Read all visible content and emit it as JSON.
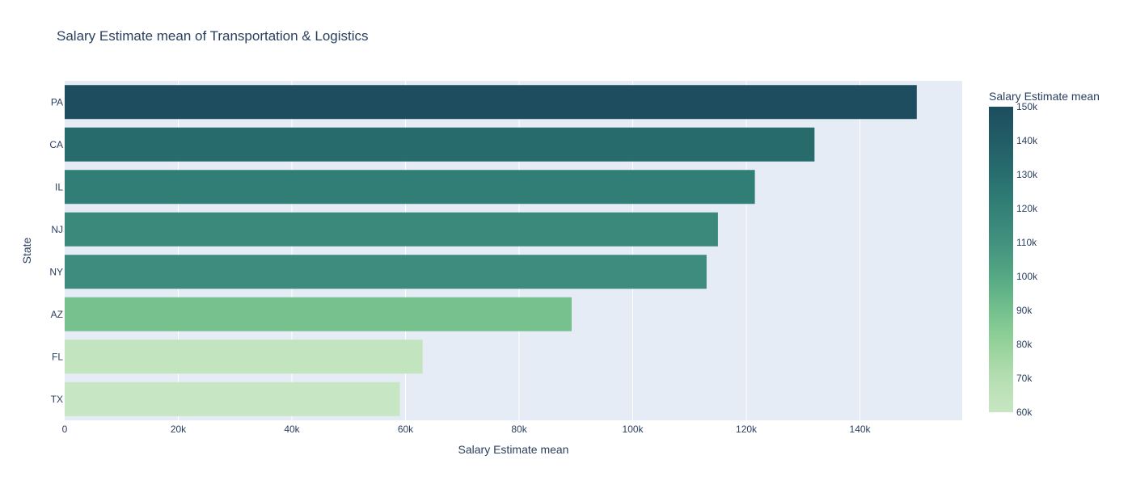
{
  "chart_data": {
    "type": "bar",
    "orientation": "horizontal",
    "title": "Salary Estimate mean of Transportation & Logistics",
    "xlabel": "Salary Estimate mean",
    "ylabel": "State",
    "categories": [
      "PA",
      "CA",
      "IL",
      "NJ",
      "NY",
      "AZ",
      "FL",
      "TX"
    ],
    "values": [
      150000,
      132000,
      121500,
      115000,
      113000,
      89250,
      63000,
      59000
    ],
    "xlim": [
      0,
      158000
    ],
    "x_ticks": [
      0,
      20000,
      40000,
      60000,
      80000,
      100000,
      120000,
      140000
    ],
    "x_tick_labels": [
      "0",
      "20k",
      "40k",
      "60k",
      "80k",
      "100k",
      "120k",
      "140k"
    ],
    "grid": true,
    "colorbar": {
      "title": "Salary Estimate mean",
      "min": 60000,
      "max": 150000,
      "ticks": [
        60000,
        70000,
        80000,
        90000,
        100000,
        110000,
        120000,
        130000,
        140000,
        150000
      ],
      "tick_labels": [
        "60k",
        "70k",
        "80k",
        "90k",
        "100k",
        "110k",
        "120k",
        "130k",
        "140k",
        "150k"
      ],
      "colorscale": [
        "#c7e6c3",
        "#b5deb2",
        "#96d29a",
        "#74c08e",
        "#55a884",
        "#42917f",
        "#338177",
        "#286e6f",
        "#225d65",
        "#1d4d5f"
      ],
      "legend_position": "right"
    },
    "colors": {
      "plot_background": "#e5ecf6",
      "grid": "#ffffff",
      "text": "#2a3f5f"
    }
  }
}
